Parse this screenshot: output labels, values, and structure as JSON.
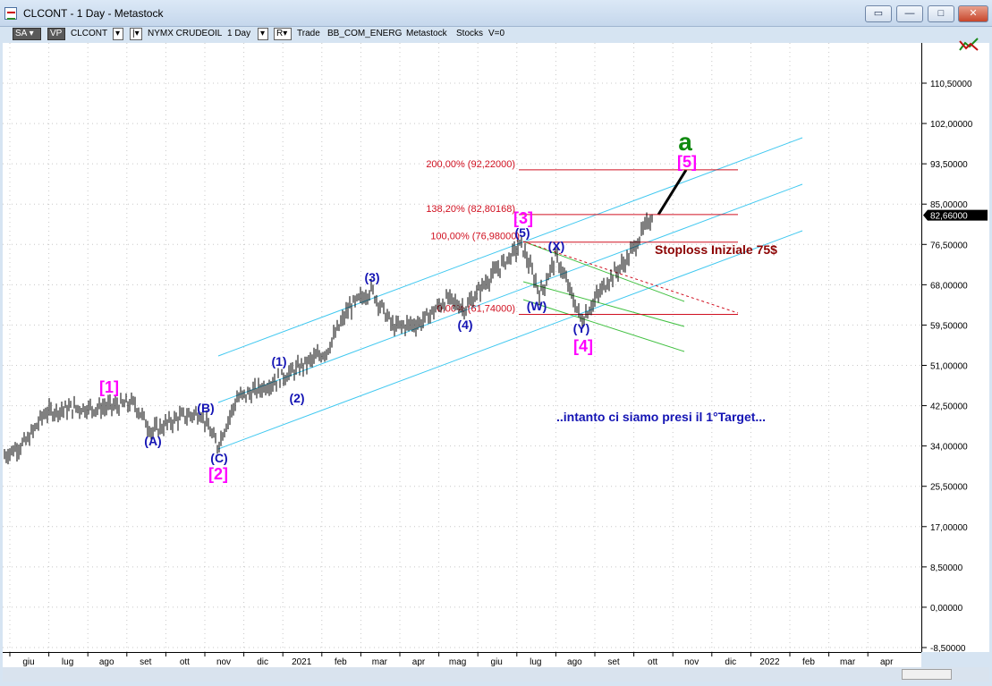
{
  "window": {
    "title": "CLCONT - 1 Day - Metastock",
    "buttons": {
      "extra": "▭",
      "minimize": "—",
      "maximize": "□",
      "close": "✕"
    }
  },
  "toolbar": {
    "sa": "SA",
    "vp": "VP",
    "symbol": "CLCONT",
    "instrument": "NYMX CRUDEOIL",
    "period": "1 Day",
    "r": "R▾",
    "trade": "Trade",
    "template": "BB_COM_ENERG",
    "source": "Metastock",
    "market": "Stocks",
    "volume": "V=0",
    "icons": {
      "dropdown": "caret-down-icon",
      "toggle": "bar-toggle-icon",
      "axis": "chart-compare-icon"
    }
  },
  "price_axis": {
    "ticks": [
      "110,50000",
      "102,00000",
      "93,50000",
      "85,00000",
      "76,50000",
      "68,00000",
      "59,50000",
      "51,00000",
      "42,50000",
      "34,00000",
      "25,50000",
      "17,00000",
      "8,50000",
      "0,00000",
      "-8,50000"
    ],
    "current": "82,66000",
    "current_value": 82.66
  },
  "time_axis": {
    "labels": [
      "giu",
      "lug",
      "ago",
      "set",
      "ott",
      "nov",
      "dic",
      "2021",
      "feb",
      "mar",
      "apr",
      "mag",
      "giu",
      "lug",
      "ago",
      "set",
      "ott",
      "nov",
      "dic",
      "2022",
      "feb",
      "mar",
      "apr"
    ]
  },
  "fib_levels": [
    {
      "label": "200,00% (92,22000)",
      "value": 92.22
    },
    {
      "label": "138,20% (82,80168)",
      "value": 82.80168
    },
    {
      "label": "100,00% (76,98000)",
      "value": 76.98
    },
    {
      "label": "0,00% (61,74000)",
      "value": 61.74
    }
  ],
  "wave_labels": {
    "w1": "[1]",
    "w2": "[2]",
    "w3": "[3]",
    "w4": "[4]",
    "w5": "[5]",
    "wa": "a",
    "A": "(A)",
    "B": "(B)",
    "C": "(C)",
    "s1": "(1)",
    "s2": "(2)",
    "s3": "(3)",
    "s4": "(4)",
    "s5": "(5)",
    "W": "(W)",
    "X": "(X)",
    "Y": "(Y)"
  },
  "annotations": {
    "stoploss": "Stoploss Iniziale 75$",
    "target": "..intanto ci siamo presi il 1°Target..."
  },
  "colors": {
    "magenta": "#ff00ff",
    "wave_blue": "#1414b4",
    "green_a": "#108a10",
    "fib_red": "#d01020",
    "cyan_channel": "#40c8f0",
    "green_channel": "#40c040",
    "dark_red_text": "#8b0000"
  }
}
